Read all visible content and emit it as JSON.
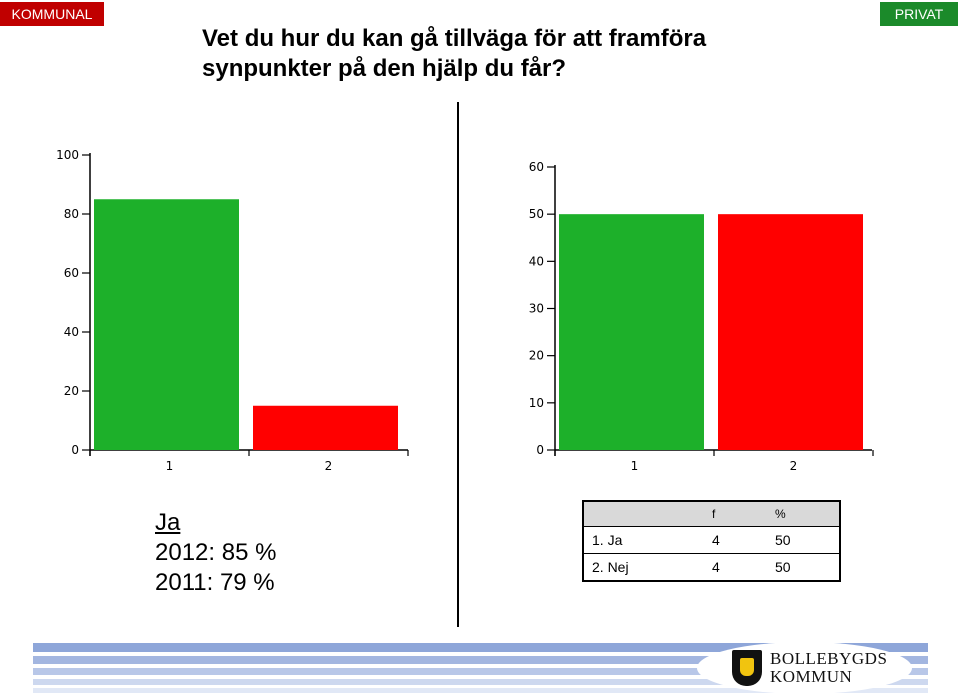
{
  "header": {
    "left_badge": "KOMMUNAL",
    "right_badge": "PRIVAT",
    "title_line1": "Vet du hur du kan gå tillväga för att framföra",
    "title_line2": "synpunkter på den hjälp du får?"
  },
  "colors": {
    "green": "#1db02a",
    "red": "#ff0000",
    "left_badge": "#c00000",
    "right_badge": "#1b8a2a",
    "footer_stripe": "#8ea6d9"
  },
  "chart_data": [
    {
      "type": "bar",
      "categories": [
        "1",
        "2"
      ],
      "values": [
        85,
        15
      ],
      "colors": [
        "#1db02a",
        "#ff0000"
      ],
      "yticks": [
        0,
        20,
        40,
        60,
        80,
        100
      ],
      "ylim": [
        0,
        100
      ],
      "title": "",
      "xlabel": "",
      "ylabel": ""
    },
    {
      "type": "bar",
      "categories": [
        "1",
        "2"
      ],
      "values": [
        50,
        50
      ],
      "colors": [
        "#1db02a",
        "#ff0000"
      ],
      "yticks": [
        0,
        10,
        20,
        30,
        40,
        50,
        60
      ],
      "ylim": [
        0,
        60
      ],
      "title": "",
      "xlabel": "",
      "ylabel": ""
    }
  ],
  "summary": {
    "label": "Ja",
    "line_2012": "2012: 85 %",
    "line_2011": "2011: 79 %"
  },
  "table": {
    "headers": [
      "",
      "f",
      "%"
    ],
    "rows": [
      [
        "1. Ja",
        "4",
        "50"
      ],
      [
        "2. Nej",
        "4",
        "50"
      ]
    ]
  },
  "footer": {
    "logo_line1": "BOLLEBYGDS",
    "logo_line2": "KOMMUN"
  }
}
